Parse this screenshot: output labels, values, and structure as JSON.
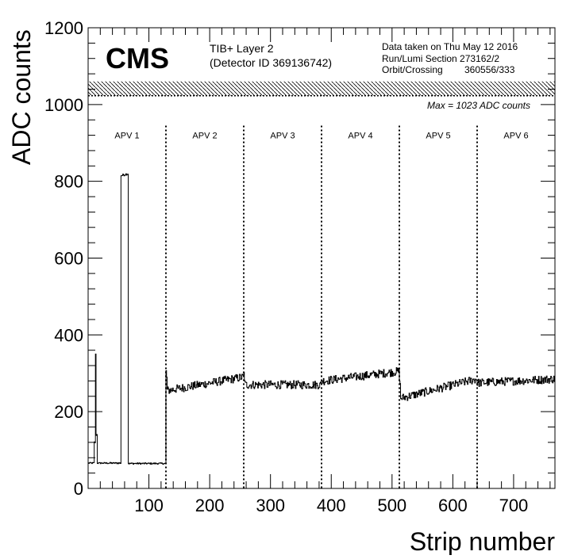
{
  "chart_data": {
    "type": "line",
    "xlabel": "Strip number",
    "ylabel": "ADC counts",
    "xlim": [
      0,
      768
    ],
    "ylim": [
      0,
      1200
    ],
    "x_ticks": [
      100,
      200,
      300,
      400,
      500,
      600,
      700
    ],
    "y_ticks": [
      0,
      200,
      400,
      600,
      800,
      1000,
      1200
    ],
    "brand": "CMS",
    "detector_line1": "TIB+ Layer 2",
    "detector_line2": "(Detector ID 369136742)",
    "info_line1": "Data taken on Thu May 12 2016",
    "info_line2": "Run/Lumi Section 273162/2",
    "info_line3_label": "Orbit/Crossing",
    "info_line3_value": "360556/333",
    "max_label": "Max = 1023 ADC counts",
    "max_line": 1023,
    "saturation_band": [
      1023,
      1060
    ],
    "apv_boundaries": [
      128,
      256,
      384,
      512,
      640
    ],
    "apv_labels": [
      "APV 1",
      "APV 2",
      "APV 3",
      "APV 4",
      "APV 5",
      "APV 6"
    ],
    "apv_label_y": 920,
    "segments": [
      {
        "from": 0,
        "to": 10,
        "start": 66,
        "end": 66,
        "noise": 2
      },
      {
        "from": 10,
        "to": 12,
        "start": 120,
        "end": 120,
        "noise": 3
      },
      {
        "from": 12,
        "to": 13,
        "start": 350,
        "end": 350,
        "noise": 0
      },
      {
        "from": 13,
        "to": 15,
        "start": 140,
        "end": 140,
        "noise": 3
      },
      {
        "from": 15,
        "to": 54,
        "start": 66,
        "end": 66,
        "noise": 2
      },
      {
        "from": 54,
        "to": 66,
        "start": 815,
        "end": 820,
        "noise": 3
      },
      {
        "from": 66,
        "to": 128,
        "start": 65,
        "end": 65,
        "noise": 2
      },
      {
        "from": 128,
        "to": 130,
        "start": 305,
        "end": 290,
        "noise": 6
      },
      {
        "from": 130,
        "to": 256,
        "start": 255,
        "end": 290,
        "noise": 11
      },
      {
        "from": 256,
        "to": 258,
        "start": 300,
        "end": 285,
        "noise": 6
      },
      {
        "from": 258,
        "to": 384,
        "start": 270,
        "end": 270,
        "noise": 11
      },
      {
        "from": 384,
        "to": 386,
        "start": 285,
        "end": 280,
        "noise": 6
      },
      {
        "from": 386,
        "to": 512,
        "start": 280,
        "end": 305,
        "noise": 11
      },
      {
        "from": 512,
        "to": 514,
        "start": 285,
        "end": 270,
        "noise": 6
      },
      {
        "from": 514,
        "to": 640,
        "start": 235,
        "end": 285,
        "noise": 11
      },
      {
        "from": 640,
        "to": 768,
        "start": 275,
        "end": 285,
        "noise": 11
      }
    ]
  }
}
